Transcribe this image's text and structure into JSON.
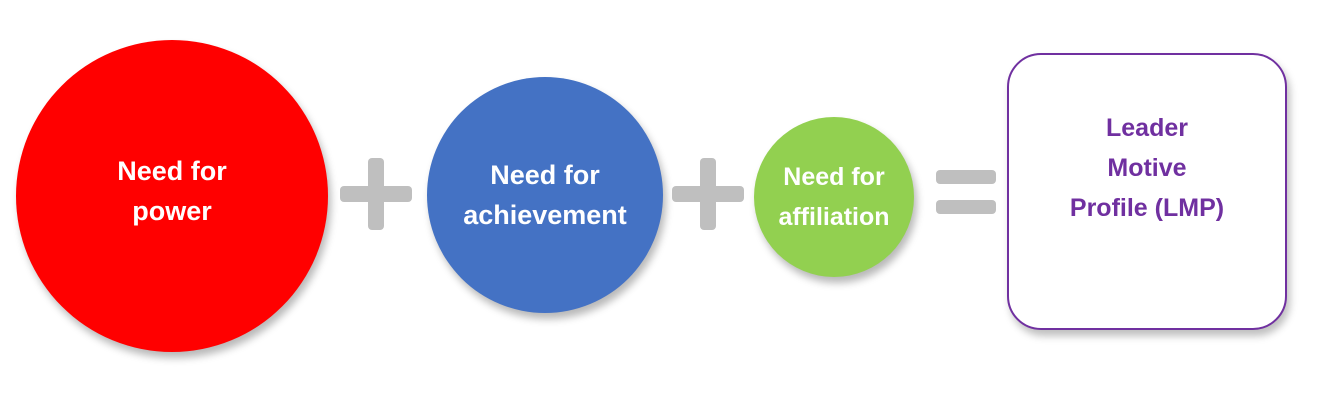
{
  "colors": {
    "power": "#ff0000",
    "achievement": "#4472c4",
    "affiliation": "#92d050",
    "operator": "#bfbfbf",
    "result_border": "#7030a0",
    "result_text": "#7030a0"
  },
  "circles": [
    {
      "line1": "Need for",
      "line2": "power"
    },
    {
      "line1": "Need for",
      "line2": "achievement"
    },
    {
      "line1": "Need for",
      "line2": "affiliation"
    }
  ],
  "result": {
    "line1": "Leader",
    "line2": "Motive",
    "line3": "Profile (LMP)"
  }
}
